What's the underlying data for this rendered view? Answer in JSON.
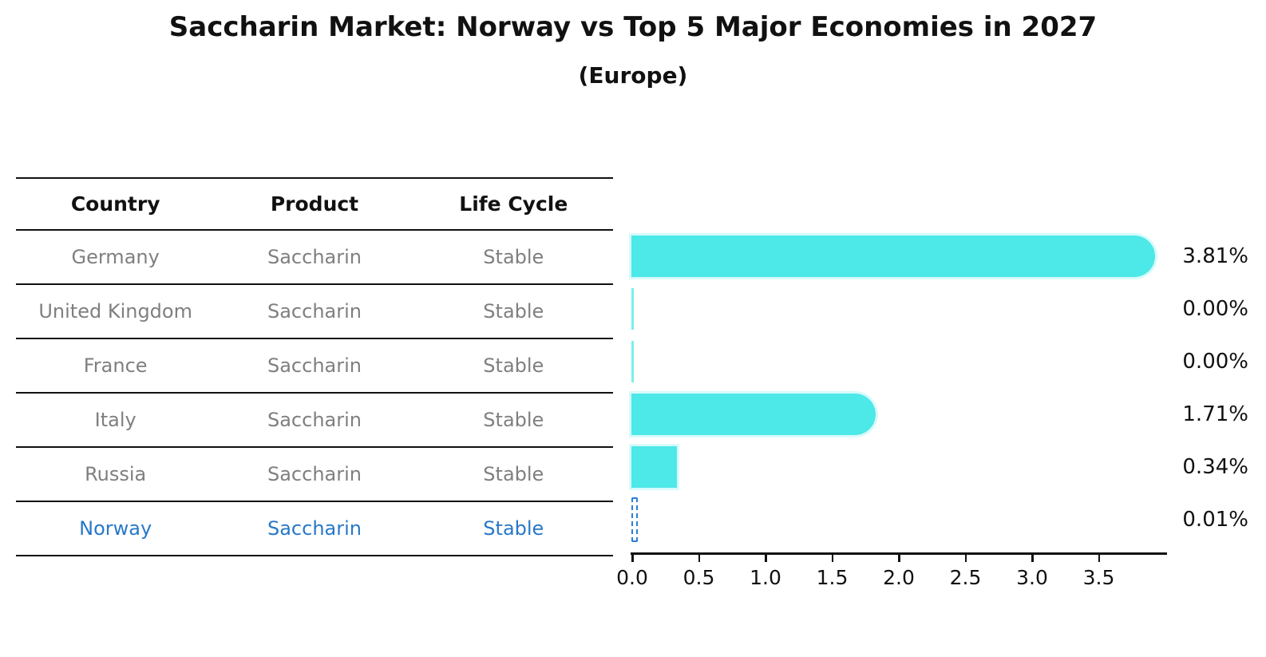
{
  "title": "Saccharin Market: Norway vs Top 5 Major Economies in 2027",
  "subtitle": "(Europe)",
  "table": {
    "headers": [
      "Country",
      "Product",
      "Life Cycle"
    ]
  },
  "rows": [
    {
      "country": "Germany",
      "product": "Saccharin",
      "life_cycle": "Stable",
      "value": 3.81,
      "label": "3.81%",
      "highlight": false
    },
    {
      "country": "United Kingdom",
      "product": "Saccharin",
      "life_cycle": "Stable",
      "value": 0.0,
      "label": "0.00%",
      "highlight": false
    },
    {
      "country": "France",
      "product": "Saccharin",
      "life_cycle": "Stable",
      "value": 0.0,
      "label": "0.00%",
      "highlight": false
    },
    {
      "country": "Italy",
      "product": "Saccharin",
      "life_cycle": "Stable",
      "value": 1.71,
      "label": "1.71%",
      "highlight": false
    },
    {
      "country": "Russia",
      "product": "Saccharin",
      "life_cycle": "Stable",
      "value": 0.34,
      "label": "0.34%",
      "highlight": false
    },
    {
      "country": "Norway",
      "product": "Saccharin",
      "life_cycle": "Stable",
      "value": 0.01,
      "label": "0.01%",
      "highlight": true
    }
  ],
  "chart_data": {
    "type": "bar",
    "orientation": "horizontal",
    "title": "Saccharin Market: Norway vs Top 5 Major Economies in 2027",
    "subtitle": "(Europe)",
    "categories": [
      "Germany",
      "United Kingdom",
      "France",
      "Italy",
      "Russia",
      "Norway"
    ],
    "values": [
      3.81,
      0.0,
      0.0,
      1.71,
      0.34,
      0.01
    ],
    "value_labels": [
      "3.81%",
      "0.00%",
      "0.00%",
      "1.71%",
      "0.34%",
      "0.01%"
    ],
    "unit": "%",
    "xlim": [
      0,
      4.0
    ],
    "x_ticks": [
      "0.0",
      "0.5",
      "1.0",
      "1.5",
      "2.0",
      "2.5",
      "3.0",
      "3.5"
    ],
    "grid": false,
    "legend": "none",
    "highlight_category": "Norway"
  },
  "colors": {
    "bar": "#4de8e8",
    "highlight_bar": "#2e7fd4",
    "highlight_text": "#2878c8",
    "row_text": "#7f7f7f",
    "header_text": "#111111",
    "axis": "#111111"
  }
}
